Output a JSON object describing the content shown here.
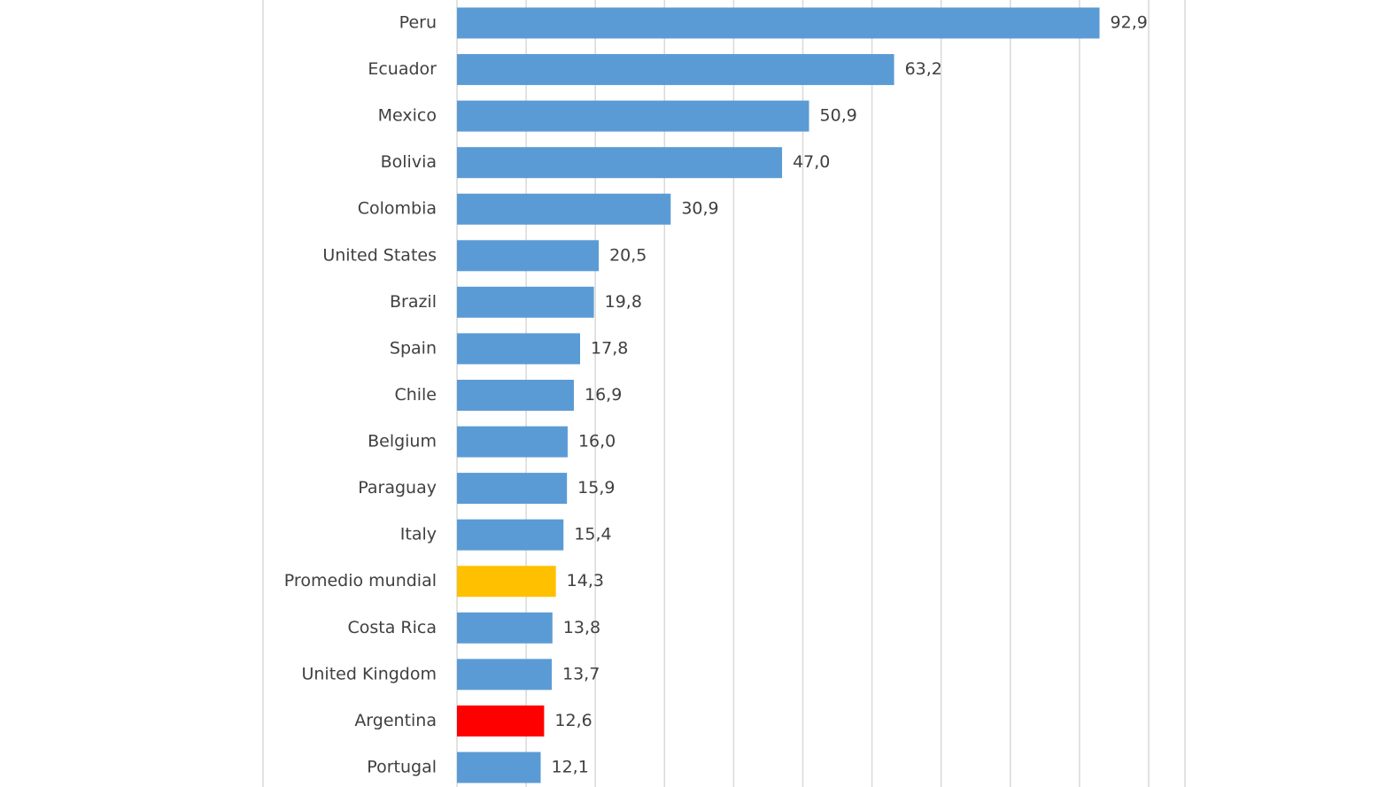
{
  "chart_data": {
    "type": "bar",
    "orientation": "horizontal",
    "categories": [
      "Peru",
      "Ecuador",
      "Mexico",
      "Bolivia",
      "Colombia",
      "United States",
      "Brazil",
      "Spain",
      "Chile",
      "Belgium",
      "Paraguay",
      "Italy",
      "Promedio mundial",
      "Costa Rica",
      "United Kingdom",
      "Argentina",
      "Portugal"
    ],
    "values": [
      92.9,
      63.2,
      50.9,
      47.0,
      30.9,
      20.5,
      19.8,
      17.8,
      16.9,
      16.0,
      15.9,
      15.4,
      14.3,
      13.8,
      13.7,
      12.6,
      12.1
    ],
    "value_labels": [
      "92,9",
      "63,2",
      "50,9",
      "47,0",
      "30,9",
      "20,5",
      "19,8",
      "17,8",
      "16,9",
      "16,0",
      "15,9",
      "15,4",
      "14,3",
      "13,8",
      "13,7",
      "12,6",
      "12,1"
    ],
    "colors": [
      "#5b9bd5",
      "#5b9bd5",
      "#5b9bd5",
      "#5b9bd5",
      "#5b9bd5",
      "#5b9bd5",
      "#5b9bd5",
      "#5b9bd5",
      "#5b9bd5",
      "#5b9bd5",
      "#5b9bd5",
      "#5b9bd5",
      "#ffc000",
      "#5b9bd5",
      "#5b9bd5",
      "#ff0000",
      "#5b9bd5"
    ],
    "xlim": [
      0,
      100
    ],
    "xticks": [
      0,
      10,
      20,
      30,
      40,
      50,
      60,
      70,
      80,
      90,
      100
    ],
    "grid": true
  }
}
